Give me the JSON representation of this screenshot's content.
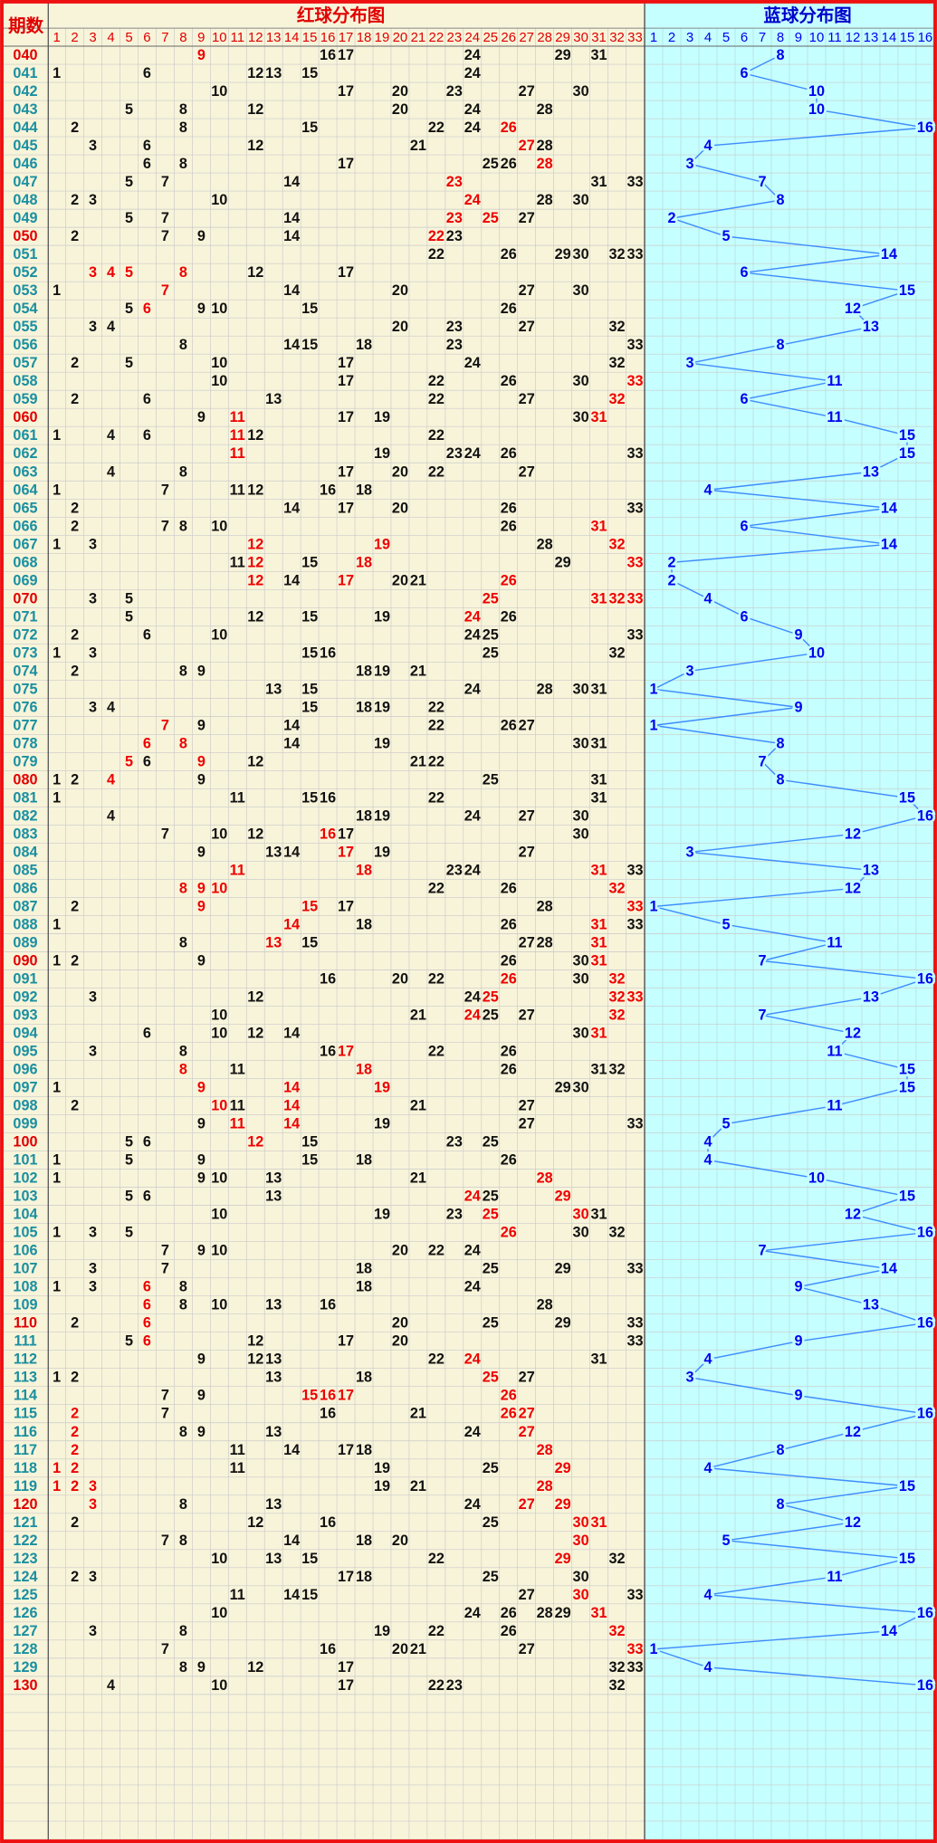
{
  "header": {
    "period_title": "期数",
    "red_title": "红球分布图",
    "blue_title": "蓝球分布图",
    "red_columns": [
      1,
      2,
      3,
      4,
      5,
      6,
      7,
      8,
      9,
      10,
      11,
      12,
      13,
      14,
      15,
      16,
      17,
      18,
      19,
      20,
      21,
      22,
      23,
      24,
      25,
      26,
      27,
      28,
      29,
      30,
      31,
      32,
      33
    ],
    "blue_columns": [
      1,
      2,
      3,
      4,
      5,
      6,
      7,
      8,
      9,
      10,
      11,
      12,
      13,
      14,
      15,
      16
    ]
  },
  "rows": [
    {
      "period": "040",
      "red": [
        9,
        16,
        17,
        24,
        29,
        31
      ],
      "highlight": [
        9
      ],
      "blue": 8
    },
    {
      "period": "041",
      "red": [
        1,
        6,
        12,
        13,
        15,
        24
      ],
      "highlight": [],
      "blue": 6
    },
    {
      "period": "042",
      "red": [
        10,
        17,
        20,
        23,
        27,
        30
      ],
      "highlight": [],
      "blue": 10
    },
    {
      "period": "043",
      "red": [
        5,
        8,
        12,
        20,
        24,
        28
      ],
      "highlight": [],
      "blue": 10
    },
    {
      "period": "044",
      "red": [
        2,
        8,
        15,
        22,
        24,
        26
      ],
      "highlight": [
        26
      ],
      "blue": 16
    },
    {
      "period": "045",
      "red": [
        3,
        6,
        12,
        21,
        27,
        28
      ],
      "highlight": [
        27
      ],
      "blue": 4
    },
    {
      "period": "046",
      "red": [
        6,
        8,
        17,
        25,
        26,
        28
      ],
      "highlight": [
        28
      ],
      "blue": 3
    },
    {
      "period": "047",
      "red": [
        5,
        7,
        14,
        23,
        31,
        33
      ],
      "highlight": [
        23
      ],
      "blue": 7
    },
    {
      "period": "048",
      "red": [
        2,
        3,
        10,
        24,
        28,
        30
      ],
      "highlight": [
        24
      ],
      "blue": 8
    },
    {
      "period": "049",
      "red": [
        5,
        7,
        14,
        23,
        25,
        27
      ],
      "highlight": [
        23,
        25
      ],
      "blue": 2
    },
    {
      "period": "050",
      "red": [
        2,
        7,
        9,
        14,
        22,
        23
      ],
      "highlight": [
        22
      ],
      "blue": 5
    },
    {
      "period": "051",
      "red": [
        22,
        26,
        29,
        30,
        32,
        33
      ],
      "highlight": [],
      "blue": 14
    },
    {
      "period": "052",
      "red": [
        3,
        4,
        5,
        8,
        12,
        17
      ],
      "highlight": [
        3,
        4,
        5,
        8
      ],
      "blue": 6
    },
    {
      "period": "053",
      "red": [
        1,
        7,
        14,
        20,
        27,
        30
      ],
      "highlight": [
        7
      ],
      "blue": 15
    },
    {
      "period": "054",
      "red": [
        5,
        6,
        9,
        10,
        15,
        26
      ],
      "highlight": [
        6
      ],
      "blue": 12
    },
    {
      "period": "055",
      "red": [
        3,
        4,
        20,
        23,
        27,
        32
      ],
      "highlight": [],
      "blue": 13
    },
    {
      "period": "056",
      "red": [
        8,
        14,
        15,
        18,
        23,
        33
      ],
      "highlight": [],
      "blue": 8
    },
    {
      "period": "057",
      "red": [
        2,
        5,
        10,
        17,
        24,
        32
      ],
      "highlight": [],
      "blue": 3
    },
    {
      "period": "058",
      "red": [
        10,
        17,
        22,
        26,
        30,
        33
      ],
      "highlight": [
        33
      ],
      "blue": 11
    },
    {
      "period": "059",
      "red": [
        2,
        6,
        13,
        22,
        27,
        32
      ],
      "highlight": [
        32
      ],
      "blue": 6
    },
    {
      "period": "060",
      "red": [
        9,
        11,
        17,
        19,
        30,
        31
      ],
      "highlight": [
        11,
        31
      ],
      "blue": 11
    },
    {
      "period": "061",
      "red": [
        1,
        4,
        6,
        11,
        12,
        22
      ],
      "highlight": [
        11
      ],
      "blue": 15
    },
    {
      "period": "062",
      "red": [
        11,
        19,
        23,
        24,
        26,
        33
      ],
      "highlight": [
        11
      ],
      "blue": 15
    },
    {
      "period": "063",
      "red": [
        4,
        8,
        17,
        20,
        22,
        27
      ],
      "highlight": [],
      "blue": 13
    },
    {
      "period": "064",
      "red": [
        1,
        7,
        11,
        12,
        16,
        18
      ],
      "highlight": [],
      "blue": 4
    },
    {
      "period": "065",
      "red": [
        2,
        14,
        17,
        20,
        26,
        33
      ],
      "highlight": [],
      "blue": 14
    },
    {
      "period": "066",
      "red": [
        2,
        7,
        8,
        10,
        26,
        31
      ],
      "highlight": [
        31
      ],
      "blue": 6
    },
    {
      "period": "067",
      "red": [
        1,
        3,
        12,
        19,
        28,
        32
      ],
      "highlight": [
        12,
        19,
        32
      ],
      "blue": 14
    },
    {
      "period": "068",
      "red": [
        11,
        12,
        15,
        18,
        29,
        33
      ],
      "highlight": [
        12,
        18,
        33
      ],
      "blue": 2
    },
    {
      "period": "069",
      "red": [
        12,
        14,
        17,
        20,
        21,
        26
      ],
      "highlight": [
        12,
        17,
        26
      ],
      "blue": 2
    },
    {
      "period": "070",
      "red": [
        3,
        5,
        25,
        31,
        32,
        33
      ],
      "highlight": [
        25,
        31,
        32,
        33
      ],
      "blue": 4
    },
    {
      "period": "071",
      "red": [
        5,
        12,
        15,
        19,
        24,
        26
      ],
      "highlight": [
        24
      ],
      "blue": 6
    },
    {
      "period": "072",
      "red": [
        2,
        6,
        10,
        24,
        25,
        33
      ],
      "highlight": [],
      "blue": 9
    },
    {
      "period": "073",
      "red": [
        1,
        3,
        15,
        16,
        25,
        32
      ],
      "highlight": [],
      "blue": 10
    },
    {
      "period": "074",
      "red": [
        2,
        8,
        9,
        18,
        19,
        21
      ],
      "highlight": [],
      "blue": 3
    },
    {
      "period": "075",
      "red": [
        13,
        15,
        24,
        28,
        30,
        31
      ],
      "highlight": [],
      "blue": 1
    },
    {
      "period": "076",
      "red": [
        3,
        4,
        15,
        18,
        19,
        22
      ],
      "highlight": [],
      "blue": 9
    },
    {
      "period": "077",
      "red": [
        7,
        9,
        14,
        22,
        26,
        27
      ],
      "highlight": [
        7
      ],
      "blue": 1
    },
    {
      "period": "078",
      "red": [
        6,
        8,
        14,
        19,
        30,
        31
      ],
      "highlight": [
        6,
        8
      ],
      "blue": 8
    },
    {
      "period": "079",
      "red": [
        5,
        6,
        9,
        12,
        21,
        22
      ],
      "highlight": [
        5,
        9
      ],
      "blue": 7
    },
    {
      "period": "080",
      "red": [
        1,
        2,
        4,
        9,
        25,
        31
      ],
      "highlight": [
        4
      ],
      "blue": 8
    },
    {
      "period": "081",
      "red": [
        1,
        11,
        15,
        16,
        22,
        31
      ],
      "highlight": [],
      "blue": 15
    },
    {
      "period": "082",
      "red": [
        4,
        18,
        19,
        24,
        27,
        30
      ],
      "highlight": [],
      "blue": 16
    },
    {
      "period": "083",
      "red": [
        7,
        10,
        12,
        16,
        17,
        30
      ],
      "highlight": [
        16
      ],
      "blue": 12
    },
    {
      "period": "084",
      "red": [
        9,
        13,
        14,
        17,
        19,
        27
      ],
      "highlight": [
        17
      ],
      "blue": 3
    },
    {
      "period": "085",
      "red": [
        11,
        18,
        23,
        24,
        31,
        33
      ],
      "highlight": [
        11,
        18,
        31
      ],
      "blue": 13
    },
    {
      "period": "086",
      "red": [
        8,
        9,
        10,
        22,
        26,
        32
      ],
      "highlight": [
        8,
        9,
        10,
        32
      ],
      "blue": 12
    },
    {
      "period": "087",
      "red": [
        2,
        9,
        15,
        17,
        28,
        33
      ],
      "highlight": [
        9,
        15,
        33
      ],
      "blue": 1
    },
    {
      "period": "088",
      "red": [
        1,
        14,
        18,
        26,
        31,
        33
      ],
      "highlight": [
        14,
        31
      ],
      "blue": 5
    },
    {
      "period": "089",
      "red": [
        8,
        13,
        15,
        27,
        28,
        31
      ],
      "highlight": [
        13,
        31
      ],
      "blue": 11
    },
    {
      "period": "090",
      "red": [
        1,
        2,
        9,
        26,
        30,
        31
      ],
      "highlight": [
        31
      ],
      "blue": 7
    },
    {
      "period": "091",
      "red": [
        16,
        20,
        22,
        26,
        30,
        32
      ],
      "highlight": [
        26,
        32
      ],
      "blue": 16
    },
    {
      "period": "092",
      "red": [
        3,
        12,
        24,
        25,
        32,
        33
      ],
      "highlight": [
        25,
        32,
        33
      ],
      "blue": 13
    },
    {
      "period": "093",
      "red": [
        10,
        21,
        24,
        25,
        27,
        32
      ],
      "highlight": [
        24,
        32
      ],
      "blue": 7
    },
    {
      "period": "094",
      "red": [
        6,
        10,
        12,
        14,
        30,
        31
      ],
      "highlight": [
        31
      ],
      "blue": 12
    },
    {
      "period": "095",
      "red": [
        3,
        8,
        16,
        17,
        22,
        26
      ],
      "highlight": [
        17
      ],
      "blue": 11
    },
    {
      "period": "096",
      "red": [
        8,
        11,
        18,
        26,
        31,
        32
      ],
      "highlight": [
        8,
        18
      ],
      "blue": 15
    },
    {
      "period": "097",
      "red": [
        1,
        9,
        14,
        19,
        29,
        30
      ],
      "highlight": [
        9,
        14,
        19
      ],
      "blue": 15
    },
    {
      "period": "098",
      "red": [
        2,
        10,
        11,
        14,
        21,
        27
      ],
      "highlight": [
        10,
        14
      ],
      "blue": 11
    },
    {
      "period": "099",
      "red": [
        9,
        11,
        14,
        19,
        27,
        33
      ],
      "highlight": [
        11,
        14
      ],
      "blue": 5
    },
    {
      "period": "100",
      "red": [
        5,
        6,
        12,
        15,
        23,
        25
      ],
      "highlight": [
        12
      ],
      "blue": 4
    },
    {
      "period": "101",
      "red": [
        1,
        5,
        9,
        15,
        18,
        26
      ],
      "highlight": [],
      "blue": 4
    },
    {
      "period": "102",
      "red": [
        1,
        9,
        10,
        13,
        21,
        28
      ],
      "highlight": [
        28
      ],
      "blue": 10
    },
    {
      "period": "103",
      "red": [
        5,
        6,
        13,
        24,
        25,
        29
      ],
      "highlight": [
        24,
        29
      ],
      "blue": 15
    },
    {
      "period": "104",
      "red": [
        10,
        19,
        23,
        25,
        30,
        31
      ],
      "highlight": [
        25,
        30
      ],
      "blue": 12
    },
    {
      "period": "105",
      "red": [
        1,
        3,
        5,
        26,
        30,
        32
      ],
      "highlight": [
        26
      ],
      "blue": 16
    },
    {
      "period": "106",
      "red": [
        7,
        9,
        10,
        20,
        22,
        24
      ],
      "highlight": [],
      "blue": 7
    },
    {
      "period": "107",
      "red": [
        3,
        7,
        18,
        25,
        29,
        33
      ],
      "highlight": [],
      "blue": 14
    },
    {
      "period": "108",
      "red": [
        1,
        3,
        6,
        8,
        18,
        24
      ],
      "highlight": [
        6
      ],
      "blue": 9
    },
    {
      "period": "109",
      "red": [
        6,
        8,
        10,
        13,
        16,
        28
      ],
      "highlight": [
        6
      ],
      "blue": 13
    },
    {
      "period": "110",
      "red": [
        2,
        6,
        20,
        25,
        29,
        33
      ],
      "highlight": [
        6
      ],
      "blue": 16
    },
    {
      "period": "111",
      "red": [
        5,
        6,
        12,
        17,
        20,
        33
      ],
      "highlight": [
        6
      ],
      "blue": 9
    },
    {
      "period": "112",
      "red": [
        9,
        12,
        13,
        22,
        24,
        31
      ],
      "highlight": [
        24
      ],
      "blue": 4
    },
    {
      "period": "113",
      "red": [
        1,
        2,
        13,
        18,
        25,
        27
      ],
      "highlight": [
        25
      ],
      "blue": 3
    },
    {
      "period": "114",
      "red": [
        7,
        9,
        15,
        16,
        17,
        26
      ],
      "highlight": [
        15,
        16,
        17,
        26
      ],
      "blue": 9
    },
    {
      "period": "115",
      "red": [
        2,
        7,
        16,
        21,
        26,
        27
      ],
      "highlight": [
        2,
        26,
        27
      ],
      "blue": 16
    },
    {
      "period": "116",
      "red": [
        2,
        8,
        9,
        13,
        24,
        27
      ],
      "highlight": [
        2,
        27
      ],
      "blue": 12
    },
    {
      "period": "117",
      "red": [
        2,
        11,
        14,
        17,
        18,
        28
      ],
      "highlight": [
        2,
        28
      ],
      "blue": 8
    },
    {
      "period": "118",
      "red": [
        1,
        2,
        11,
        19,
        25,
        29
      ],
      "highlight": [
        1,
        2,
        29
      ],
      "blue": 4
    },
    {
      "period": "119",
      "red": [
        1,
        2,
        3,
        19,
        21,
        28
      ],
      "highlight": [
        1,
        2,
        3,
        28
      ],
      "blue": 15
    },
    {
      "period": "120",
      "red": [
        3,
        8,
        13,
        24,
        27,
        29
      ],
      "highlight": [
        3,
        27,
        29
      ],
      "blue": 8
    },
    {
      "period": "121",
      "red": [
        2,
        12,
        16,
        25,
        30,
        31
      ],
      "highlight": [
        30,
        31
      ],
      "blue": 12
    },
    {
      "period": "122",
      "red": [
        7,
        8,
        14,
        18,
        20,
        30
      ],
      "highlight": [
        30
      ],
      "blue": 5
    },
    {
      "period": "123",
      "red": [
        10,
        13,
        15,
        22,
        29,
        32
      ],
      "highlight": [
        29
      ],
      "blue": 15
    },
    {
      "period": "124",
      "red": [
        2,
        3,
        17,
        18,
        25,
        30
      ],
      "highlight": [],
      "blue": 11
    },
    {
      "period": "125",
      "red": [
        11,
        14,
        15,
        27,
        30,
        33
      ],
      "highlight": [
        30
      ],
      "blue": 4
    },
    {
      "period": "126",
      "red": [
        10,
        24,
        26,
        28,
        29,
        31
      ],
      "highlight": [
        31
      ],
      "blue": 16
    },
    {
      "period": "127",
      "red": [
        3,
        8,
        19,
        22,
        26,
        32
      ],
      "highlight": [
        32
      ],
      "blue": 14
    },
    {
      "period": "128",
      "red": [
        7,
        16,
        20,
        21,
        27,
        33
      ],
      "highlight": [
        33
      ],
      "blue": 1
    },
    {
      "period": "129",
      "red": [
        8,
        9,
        12,
        17,
        32,
        33
      ],
      "highlight": [],
      "blue": 4
    },
    {
      "period": "130",
      "red": [
        4,
        10,
        17,
        22,
        23,
        32
      ],
      "highlight": [],
      "blue": 16
    }
  ]
}
